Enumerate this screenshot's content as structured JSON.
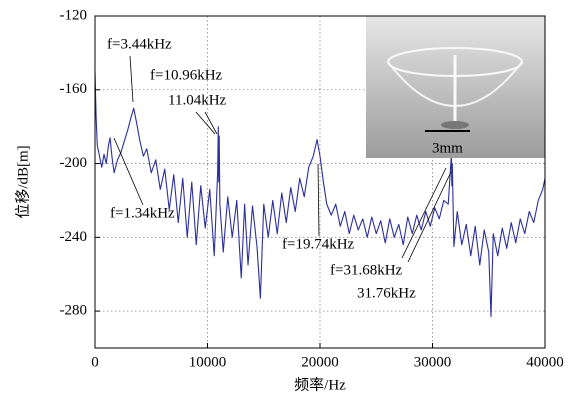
{
  "chart_data": {
    "type": "line",
    "x_label": "频率/Hz",
    "y_label": "位移/dB[m]",
    "xlim": [
      0,
      40000
    ],
    "ylim": [
      -300,
      -120
    ],
    "xticks": [
      0,
      10000,
      20000,
      30000,
      40000
    ],
    "yticks": [
      -120,
      -160,
      -200,
      -240,
      -280
    ],
    "grid": true,
    "annotations": [
      "f=3.44kHz",
      "f=10.96kHz",
      "11.04kHz",
      "f=1.34kHz",
      "f=19.74kHz",
      "f=31.68kHz",
      "31.76kHz"
    ],
    "inset_label": "3mm",
    "series": [
      {
        "color": "#2b2f9e",
        "x": [
          0,
          100,
          200,
          400,
          600,
          800,
          1000,
          1200,
          1340,
          1500,
          1700,
          2000,
          2300,
          2600,
          2900,
          3200,
          3440,
          3700,
          4000,
          4300,
          4600,
          5000,
          5400,
          5800,
          6200,
          6600,
          7000,
          7400,
          7800,
          8200,
          8600,
          9000,
          9400,
          9800,
          10200,
          10600,
          10900,
          10960,
          11000,
          11040,
          11100,
          11400,
          11800,
          12200,
          12600,
          13000,
          13300,
          13600,
          14000,
          14400,
          14700,
          15000,
          15400,
          15800,
          16200,
          16600,
          17000,
          17400,
          17800,
          18200,
          18600,
          19000,
          19400,
          19740,
          20000,
          20300,
          20600,
          21000,
          21400,
          21800,
          22200,
          22600,
          23000,
          23400,
          23800,
          24200,
          24600,
          25000,
          25400,
          25800,
          26200,
          26600,
          27000,
          27400,
          27800,
          28200,
          28600,
          29000,
          29400,
          29800,
          30200,
          30600,
          31000,
          31400,
          31680,
          31720,
          31760,
          31900,
          32200,
          32600,
          33000,
          33400,
          33800,
          34200,
          34600,
          35000,
          35200,
          35400,
          35800,
          36200,
          36600,
          37000,
          37400,
          37800,
          38200,
          38600,
          39000,
          39400,
          39800,
          40000
        ],
        "values": [
          -150,
          -175,
          -190,
          -196,
          -202,
          -195,
          -200,
          -190,
          -186,
          -196,
          -205,
          -198,
          -194,
          -188,
          -182,
          -175,
          -170,
          -178,
          -188,
          -196,
          -192,
          -205,
          -198,
          -214,
          -203,
          -225,
          -206,
          -232,
          -208,
          -240,
          -210,
          -244,
          -212,
          -235,
          -214,
          -250,
          -205,
          -180,
          -210,
          -185,
          -222,
          -248,
          -218,
          -240,
          -220,
          -262,
          -222,
          -255,
          -223,
          -245,
          -273,
          -222,
          -240,
          -220,
          -238,
          -216,
          -232,
          -213,
          -226,
          -208,
          -218,
          -202,
          -196,
          -187,
          -196,
          -210,
          -222,
          -228,
          -222,
          -234,
          -226,
          -238,
          -228,
          -236,
          -230,
          -240,
          -229,
          -238,
          -231,
          -243,
          -230,
          -240,
          -233,
          -244,
          -229,
          -238,
          -228,
          -236,
          -226,
          -234,
          -224,
          -230,
          -220,
          -222,
          -195,
          -212,
          -200,
          -245,
          -226,
          -244,
          -233,
          -250,
          -234,
          -255,
          -236,
          -248,
          -283,
          -238,
          -250,
          -235,
          -246,
          -232,
          -243,
          -230,
          -238,
          -226,
          -232,
          -220,
          -214,
          -208
        ]
      }
    ]
  }
}
